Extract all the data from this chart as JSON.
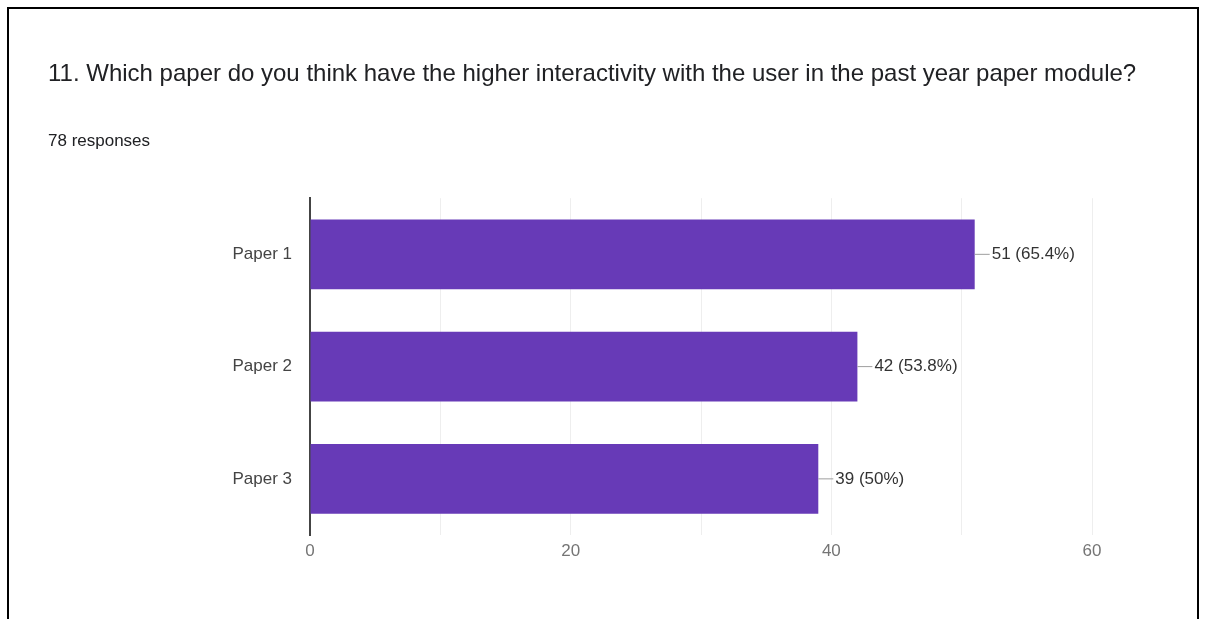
{
  "chart_data": {
    "type": "bar",
    "orientation": "horizontal",
    "title": "11. Which paper do you think have the higher interactivity with the user in the past year paper module?",
    "subtitle": "78 responses",
    "categories": [
      "Paper 1",
      "Paper 2",
      "Paper 3"
    ],
    "values": [
      51,
      42,
      39
    ],
    "color": "#673ab7",
    "value_labels": [
      "51 (65.4%)",
      "42 (53.8%)",
      "39 (50%)"
    ],
    "xlim": [
      0,
      60
    ],
    "xticks": [
      0,
      {
        "value": 10,
        "label": null
      },
      20,
      {
        "value": 30,
        "label": null
      },
      40,
      {
        "value": 50,
        "label": null
      },
      60
    ],
    "grid": "x",
    "legend": false
  }
}
